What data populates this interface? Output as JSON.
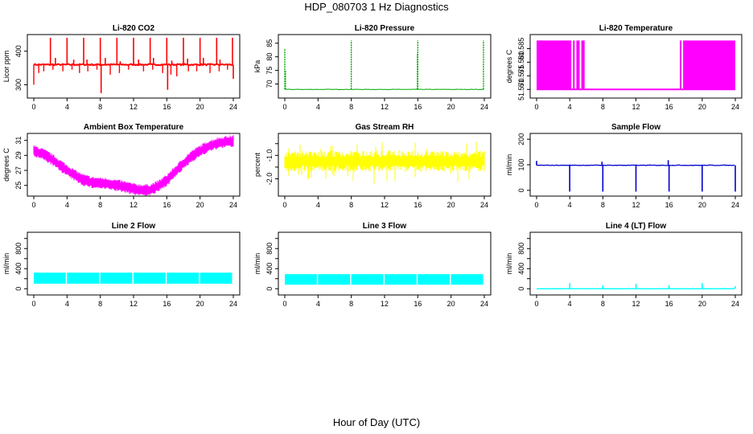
{
  "title": "HDP_080703  1 Hz Diagnostics",
  "xlabel": "Hour of Day (UTC)",
  "chart_data": [
    {
      "type": "line",
      "title": "Li-820 CO2",
      "ylabel": "Licor ppm",
      "color": "#ff0000",
      "xlim": [
        0,
        24
      ],
      "ylim": [
        270,
        440
      ],
      "yticks": [
        300,
        400
      ],
      "xticks": [
        0,
        4,
        8,
        12,
        16,
        20,
        24
      ],
      "baseline": 360,
      "noise": 4,
      "style": "co2",
      "spikes": [
        [
          2,
          440
        ],
        [
          2.6,
          380
        ],
        [
          4,
          440
        ],
        [
          4.8,
          375
        ],
        [
          6,
          440
        ],
        [
          6.4,
          375
        ],
        [
          8,
          440
        ],
        [
          8.1,
          275
        ],
        [
          8.6,
          380
        ],
        [
          10,
          440
        ],
        [
          10.4,
          370
        ],
        [
          12,
          440
        ],
        [
          12.6,
          375
        ],
        [
          14,
          440
        ],
        [
          14.4,
          380
        ],
        [
          16,
          440
        ],
        [
          16.1,
          285
        ],
        [
          16.6,
          372
        ],
        [
          18,
          440
        ],
        [
          18.5,
          378
        ],
        [
          20,
          440
        ],
        [
          20.4,
          380
        ],
        [
          22,
          440
        ],
        [
          22.4,
          375
        ],
        [
          23.9,
          440
        ],
        [
          24,
          318
        ]
      ],
      "dips": [
        [
          0,
          300
        ],
        [
          0.6,
          335
        ],
        [
          1.2,
          340
        ],
        [
          2.3,
          345
        ],
        [
          3.5,
          340
        ],
        [
          4.6,
          345
        ],
        [
          5.5,
          335
        ],
        [
          6.5,
          340
        ],
        [
          7.6,
          345
        ],
        [
          9.2,
          330
        ],
        [
          10.3,
          335
        ],
        [
          11.4,
          345
        ],
        [
          13.2,
          340
        ],
        [
          14.3,
          345
        ],
        [
          15.5,
          335
        ],
        [
          16.5,
          330
        ],
        [
          17.2,
          325
        ],
        [
          18.6,
          340
        ],
        [
          19.6,
          340
        ],
        [
          21.2,
          335
        ],
        [
          22.3,
          340
        ],
        [
          23.3,
          345
        ]
      ]
    },
    {
      "type": "line",
      "title": "Li-820 Pressure",
      "ylabel": "kPa",
      "color": "#00aa00",
      "xlim": [
        0,
        24
      ],
      "ylim": [
        66,
        87
      ],
      "yticks": [
        70,
        75,
        80,
        85
      ],
      "xticks": [
        0,
        4,
        8,
        12,
        16,
        20,
        24
      ],
      "baseline": 68,
      "noise": 0.15,
      "style": "pressure",
      "spikes": [
        [
          0,
          83
        ],
        [
          0.08,
          75
        ],
        [
          8,
          86
        ],
        [
          16,
          86
        ],
        [
          15.95,
          81
        ],
        [
          23.9,
          86
        ]
      ]
    },
    {
      "type": "area",
      "title": "Li-820 Temperature",
      "ylabel": "degrees C",
      "color": "#ff00ff",
      "xlim": [
        0,
        24
      ],
      "ylim": [
        51.568,
        51.589
      ],
      "yticks": [
        51.57,
        51.575,
        51.58,
        51.585
      ],
      "ytick_labels": [
        "51.570",
        "51.575",
        "51.580",
        "51.585"
      ],
      "xticks": [
        0,
        4,
        8,
        12,
        16,
        20,
        24
      ],
      "low": 51.57,
      "high": 51.588,
      "filled_ranges": [
        [
          0,
          4.2
        ],
        [
          4.4,
          4.6
        ],
        [
          4.8,
          5.2
        ],
        [
          5.4,
          5.8
        ],
        [
          17.3,
          17.5
        ],
        [
          17.7,
          24
        ]
      ]
    },
    {
      "type": "line",
      "title": "Ambient Box Temperature",
      "ylabel": "degrees C",
      "color": "#ff00ff",
      "xlim": [
        0,
        24
      ],
      "ylim": [
        24,
        31.5
      ],
      "yticks": [
        25,
        27,
        29,
        31
      ],
      "xticks": [
        0,
        4,
        8,
        12,
        16,
        20,
        24
      ],
      "band": 0.9,
      "style": "band",
      "x": [
        0,
        1,
        2,
        3,
        4,
        5,
        6,
        7,
        8,
        9,
        10,
        11,
        12,
        13,
        14,
        15,
        16,
        17,
        18,
        19,
        20,
        21,
        22,
        23,
        24
      ],
      "values": [
        29.6,
        29.2,
        28.6,
        27.8,
        27.0,
        26.3,
        25.7,
        25.4,
        25.3,
        25.2,
        25.0,
        24.8,
        24.5,
        24.4,
        24.4,
        24.9,
        25.7,
        26.8,
        27.9,
        28.9,
        29.6,
        30.2,
        30.6,
        30.8,
        30.9
      ]
    },
    {
      "type": "line",
      "title": "Gas Stream RH",
      "ylabel": "percent",
      "color": "#ffff00",
      "xlim": [
        0,
        24
      ],
      "ylim": [
        -2.6,
        -0.2
      ],
      "yticks": [
        -2,
        -1.5,
        -1,
        -0.5
      ],
      "ytick_labels": [
        "-2.0",
        "",
        "-1.0",
        ""
      ],
      "xticks": [
        0,
        4,
        8,
        12,
        16,
        20,
        24
      ],
      "center": -1.25,
      "band": 0.45,
      "style": "noise"
    },
    {
      "type": "line",
      "title": "Sample Flow",
      "ylabel": "ml/min",
      "color": "#0000cc",
      "xlim": [
        0,
        24
      ],
      "ylim": [
        -10,
        210
      ],
      "yticks": [
        0,
        100,
        200
      ],
      "xticks": [
        0,
        4,
        8,
        12,
        16,
        20,
        24
      ],
      "baseline": 98,
      "noise": 2,
      "style": "flow",
      "spikes": [
        [
          0,
          115
        ],
        [
          4,
          -5
        ],
        [
          7.9,
          112
        ],
        [
          8,
          -5
        ],
        [
          12,
          -5
        ],
        [
          15.9,
          118
        ],
        [
          16,
          -5
        ],
        [
          20,
          -5
        ],
        [
          24,
          -5
        ]
      ]
    },
    {
      "type": "area",
      "title": "Line 2 Flow",
      "ylabel": "ml/min",
      "color": "#00ffff",
      "xlim": [
        0,
        24
      ],
      "ylim": [
        -60,
        1060
      ],
      "yticks": [
        0,
        200,
        400,
        600,
        800,
        1000
      ],
      "ytick_labels": [
        "0",
        "",
        "400",
        "",
        "800",
        ""
      ],
      "xticks": [
        0,
        4,
        8,
        12,
        16,
        20,
        24
      ],
      "low": 100,
      "high": 320,
      "gaps": [
        4,
        8,
        12,
        16,
        20,
        24
      ]
    },
    {
      "type": "area",
      "title": "Line 3 Flow",
      "ylabel": "ml/min",
      "color": "#00ffff",
      "xlim": [
        0,
        24
      ],
      "ylim": [
        -60,
        1060
      ],
      "yticks": [
        0,
        200,
        400,
        600,
        800,
        1000
      ],
      "ytick_labels": [
        "0",
        "",
        "400",
        "",
        "800",
        ""
      ],
      "xticks": [
        0,
        4,
        8,
        12,
        16,
        20,
        24
      ],
      "low": 80,
      "high": 290,
      "gaps": [
        4,
        8,
        12,
        16,
        20,
        24
      ]
    },
    {
      "type": "line",
      "title": "Line 4 (LT) Flow",
      "ylabel": "ml/min",
      "color": "#00ffff",
      "xlim": [
        0,
        24
      ],
      "ylim": [
        -60,
        1060
      ],
      "yticks": [
        0,
        200,
        400,
        600,
        800,
        1000
      ],
      "ytick_labels": [
        "0",
        "",
        "400",
        "",
        "800",
        ""
      ],
      "xticks": [
        0,
        4,
        8,
        12,
        16,
        20,
        24
      ],
      "baseline": 0,
      "noise": 2,
      "style": "flow",
      "spikes": [
        [
          4,
          110
        ],
        [
          8,
          70
        ],
        [
          12,
          100
        ],
        [
          16,
          70
        ],
        [
          20,
          110
        ],
        [
          24,
          50
        ]
      ]
    }
  ]
}
